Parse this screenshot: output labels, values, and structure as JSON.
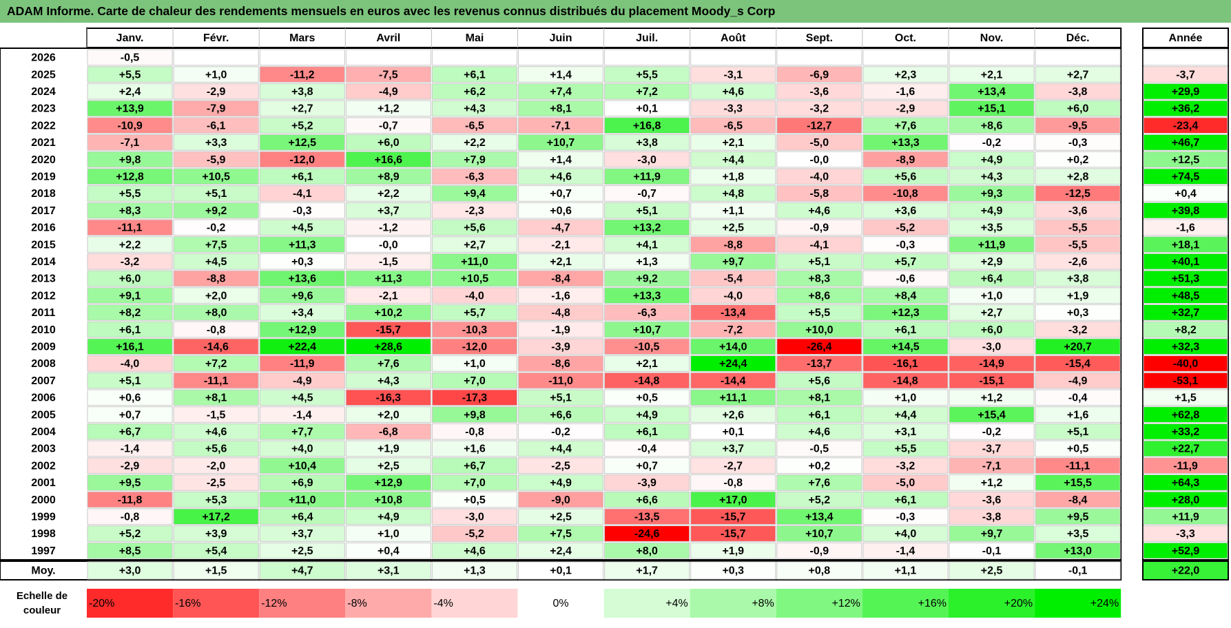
{
  "title": "ADAM Informe. Carte de chaleur des rendements mensuels en euros avec les revenus connus distribués du placement Moody_s Corp",
  "chart_data": {
    "type": "heatmap",
    "months": [
      "Janv.",
      "Févr.",
      "Mars",
      "Avril",
      "Mai",
      "Juin",
      "Juil.",
      "Août",
      "Sept.",
      "Oct.",
      "Nov.",
      "Déc."
    ],
    "year_column_label": "Année",
    "rows": [
      {
        "year": "2026",
        "values": [
          "-0,5",
          "",
          "",
          "",
          "",
          "",
          "",
          "",
          "",
          "",
          "",
          ""
        ],
        "annual": ""
      },
      {
        "year": "2025",
        "values": [
          "+5,5",
          "+1,0",
          "-11,2",
          "-7,5",
          "+6,1",
          "+1,4",
          "+5,5",
          "-3,1",
          "-6,9",
          "+2,3",
          "+2,1",
          "+2,7"
        ],
        "annual": "-3,7"
      },
      {
        "year": "2024",
        "values": [
          "+2,4",
          "-2,9",
          "+3,8",
          "-4,9",
          "+6,2",
          "+7,4",
          "+7,2",
          "+4,6",
          "-3,6",
          "-1,6",
          "+13,4",
          "-3,8"
        ],
        "annual": "+29,9"
      },
      {
        "year": "2023",
        "values": [
          "+13,9",
          "-7,9",
          "+2,7",
          "+1,2",
          "+4,3",
          "+8,1",
          "+0,1",
          "-3,3",
          "-3,2",
          "-2,9",
          "+15,1",
          "+6,0"
        ],
        "annual": "+36,2"
      },
      {
        "year": "2022",
        "values": [
          "-10,9",
          "-6,1",
          "+5,2",
          "-0,7",
          "-6,5",
          "-7,1",
          "+16,8",
          "-6,5",
          "-12,7",
          "+7,6",
          "+8,6",
          "-9,5"
        ],
        "annual": "-23,4"
      },
      {
        "year": "2021",
        "values": [
          "-7,1",
          "+3,3",
          "+12,5",
          "+6,0",
          "+2,2",
          "+10,7",
          "+3,8",
          "+2,1",
          "-5,0",
          "+13,3",
          "-0,2",
          "-0,3"
        ],
        "annual": "+46,7"
      },
      {
        "year": "2020",
        "values": [
          "+9,8",
          "-5,9",
          "-12,0",
          "+16,6",
          "+7,9",
          "+1,4",
          "-3,0",
          "+4,4",
          "-0,0",
          "-8,9",
          "+4,9",
          "+0,2"
        ],
        "annual": "+12,5"
      },
      {
        "year": "2019",
        "values": [
          "+12,8",
          "+10,5",
          "+6,1",
          "+8,9",
          "-6,3",
          "+4,6",
          "+11,9",
          "+1,8",
          "-4,0",
          "+5,6",
          "+4,3",
          "+2,8"
        ],
        "annual": "+74,5"
      },
      {
        "year": "2018",
        "values": [
          "+5,5",
          "+5,1",
          "-4,1",
          "+2,2",
          "+9,4",
          "+0,7",
          "-0,7",
          "+4,8",
          "-5,8",
          "-10,8",
          "+9,3",
          "-12,5"
        ],
        "annual": "+0,4"
      },
      {
        "year": "2017",
        "values": [
          "+8,3",
          "+9,2",
          "-0,3",
          "+3,7",
          "-2,3",
          "+0,6",
          "+5,1",
          "+1,1",
          "+4,6",
          "+3,6",
          "+4,9",
          "-3,6"
        ],
        "annual": "+39,8"
      },
      {
        "year": "2016",
        "values": [
          "-11,1",
          "-0,2",
          "+4,5",
          "-1,2",
          "+5,6",
          "-4,7",
          "+13,2",
          "+2,5",
          "-0,9",
          "-5,2",
          "+3,5",
          "-5,5"
        ],
        "annual": "-1,6"
      },
      {
        "year": "2015",
        "values": [
          "+2,2",
          "+7,5",
          "+11,3",
          "-0,0",
          "+2,7",
          "-2,1",
          "+4,1",
          "-8,8",
          "-4,1",
          "-0,3",
          "+11,9",
          "-5,5"
        ],
        "annual": "+18,1"
      },
      {
        "year": "2014",
        "values": [
          "-3,2",
          "+4,5",
          "+0,3",
          "-1,5",
          "+11,0",
          "+2,1",
          "+1,3",
          "+9,7",
          "+5,1",
          "+5,7",
          "+2,9",
          "-2,6"
        ],
        "annual": "+40,1"
      },
      {
        "year": "2013",
        "values": [
          "+6,0",
          "-8,8",
          "+13,6",
          "+11,3",
          "+10,5",
          "-8,4",
          "+9,2",
          "-5,4",
          "+8,3",
          "-0,6",
          "+6,4",
          "+3,8"
        ],
        "annual": "+51,3"
      },
      {
        "year": "2012",
        "values": [
          "+9,1",
          "+2,0",
          "+9,6",
          "-2,1",
          "-4,0",
          "-1,6",
          "+13,3",
          "-4,0",
          "+8,6",
          "+8,4",
          "+1,0",
          "+1,9"
        ],
        "annual": "+48,5"
      },
      {
        "year": "2011",
        "values": [
          "+8,2",
          "+8,0",
          "+3,4",
          "+10,2",
          "+5,7",
          "-4,8",
          "-6,3",
          "-13,4",
          "+5,5",
          "+12,3",
          "+2,7",
          "+0,3"
        ],
        "annual": "+32,7"
      },
      {
        "year": "2010",
        "values": [
          "+6,1",
          "-0,8",
          "+12,9",
          "-15,7",
          "-10,3",
          "-1,9",
          "+10,7",
          "-7,2",
          "+10,0",
          "+6,1",
          "+6,0",
          "-3,2"
        ],
        "annual": "+8,2"
      },
      {
        "year": "2009",
        "values": [
          "+16,1",
          "-14,6",
          "+22,4",
          "+28,6",
          "-12,0",
          "-3,9",
          "-10,5",
          "+14,0",
          "-26,4",
          "+14,5",
          "-3,0",
          "+20,7"
        ],
        "annual": "+32,3"
      },
      {
        "year": "2008",
        "values": [
          "-4,0",
          "+7,2",
          "-11,9",
          "+7,6",
          "+1,0",
          "-8,6",
          "+2,1",
          "+24,4",
          "-13,7",
          "-16,1",
          "-14,9",
          "-15,4"
        ],
        "annual": "-40,0"
      },
      {
        "year": "2007",
        "values": [
          "+5,1",
          "-11,1",
          "-4,9",
          "+4,3",
          "+7,0",
          "-11,0",
          "-14,8",
          "-14,4",
          "+5,6",
          "-14,8",
          "-15,1",
          "-4,9"
        ],
        "annual": "-53,1"
      },
      {
        "year": "2006",
        "values": [
          "+0,6",
          "+8,1",
          "+4,5",
          "-16,3",
          "-17,3",
          "+5,1",
          "+0,5",
          "+11,1",
          "+8,1",
          "+1,0",
          "+1,2",
          "-0,4"
        ],
        "annual": "+1,5"
      },
      {
        "year": "2005",
        "values": [
          "+0,7",
          "-1,5",
          "-1,4",
          "+2,0",
          "+9,8",
          "+6,6",
          "+4,9",
          "+2,6",
          "+6,1",
          "+4,4",
          "+15,4",
          "+1,6"
        ],
        "annual": "+62,8"
      },
      {
        "year": "2004",
        "values": [
          "+6,7",
          "+4,6",
          "+7,7",
          "-6,8",
          "-0,8",
          "-0,2",
          "+6,1",
          "+0,1",
          "+4,6",
          "+3,1",
          "-0,2",
          "+5,1"
        ],
        "annual": "+33,2"
      },
      {
        "year": "2003",
        "values": [
          "-1,4",
          "+5,6",
          "+4,0",
          "+1,9",
          "+1,6",
          "+4,4",
          "-0,4",
          "+3,7",
          "-0,5",
          "+5,5",
          "-3,7",
          "+0,5"
        ],
        "annual": "+22,7"
      },
      {
        "year": "2002",
        "values": [
          "-2,9",
          "-2,0",
          "+10,4",
          "+2,5",
          "+6,7",
          "-2,5",
          "+0,7",
          "-2,7",
          "+0,2",
          "-3,2",
          "-7,1",
          "-11,1"
        ],
        "annual": "-11,9"
      },
      {
        "year": "2001",
        "values": [
          "+9,5",
          "-2,5",
          "+6,9",
          "+12,9",
          "+7,0",
          "+4,9",
          "-3,9",
          "-0,8",
          "+7,6",
          "-5,0",
          "+1,2",
          "+15,5"
        ],
        "annual": "+64,3"
      },
      {
        "year": "2000",
        "values": [
          "-11,8",
          "+5,3",
          "+11,0",
          "+10,8",
          "+0,5",
          "-9,0",
          "+6,6",
          "+17,0",
          "+5,2",
          "+6,1",
          "-3,6",
          "-8,4"
        ],
        "annual": "+28,0"
      },
      {
        "year": "1999",
        "values": [
          "-0,8",
          "+17,2",
          "+6,4",
          "+4,9",
          "-3,0",
          "+2,5",
          "-13,5",
          "-15,7",
          "+13,4",
          "-0,3",
          "-3,8",
          "+9,5"
        ],
        "annual": "+11,9"
      },
      {
        "year": "1998",
        "values": [
          "+5,2",
          "+3,9",
          "+3,7",
          "+1,0",
          "-5,2",
          "+7,5",
          "-24,6",
          "-15,7",
          "+10,7",
          "+4,0",
          "+9,7",
          "+3,5"
        ],
        "annual": "-3,3"
      },
      {
        "year": "1997",
        "values": [
          "+8,5",
          "+5,4",
          "+2,5",
          "+0,4",
          "+4,6",
          "+2,4",
          "+8,0",
          "+1,9",
          "-0,9",
          "-1,4",
          "-0,1",
          "+13,0"
        ],
        "annual": "+52,9"
      }
    ],
    "average": {
      "label": "Moy.",
      "values": [
        "+3,0",
        "+1,5",
        "+4,7",
        "+3,1",
        "+1,3",
        "+0,1",
        "+1,7",
        "+0,3",
        "+0,8",
        "+1,1",
        "+2,5",
        "-0,1"
      ],
      "annual": "+22,0"
    },
    "scale": {
      "label_line1": "Echelle de",
      "label_line2": "couleur",
      "steps": [
        {
          "label": "-20%",
          "value": -20
        },
        {
          "label": "-16%",
          "value": -16
        },
        {
          "label": "-12%",
          "value": -12
        },
        {
          "label": "-8%",
          "value": -8
        },
        {
          "label": "-4%",
          "value": -4
        },
        {
          "label": "0%",
          "value": 0
        },
        {
          "label": "+4%",
          "value": 4
        },
        {
          "label": "+8%",
          "value": 8
        },
        {
          "label": "+12%",
          "value": 12
        },
        {
          "label": "+16%",
          "value": 16
        },
        {
          "label": "+20%",
          "value": 20
        },
        {
          "label": "+24%",
          "value": 24
        }
      ]
    },
    "colors": {
      "negative_max": "#ff0000",
      "positive_max": "#00ee00",
      "neutral": "#ffffff",
      "title_bar": "#7cc47c"
    }
  }
}
